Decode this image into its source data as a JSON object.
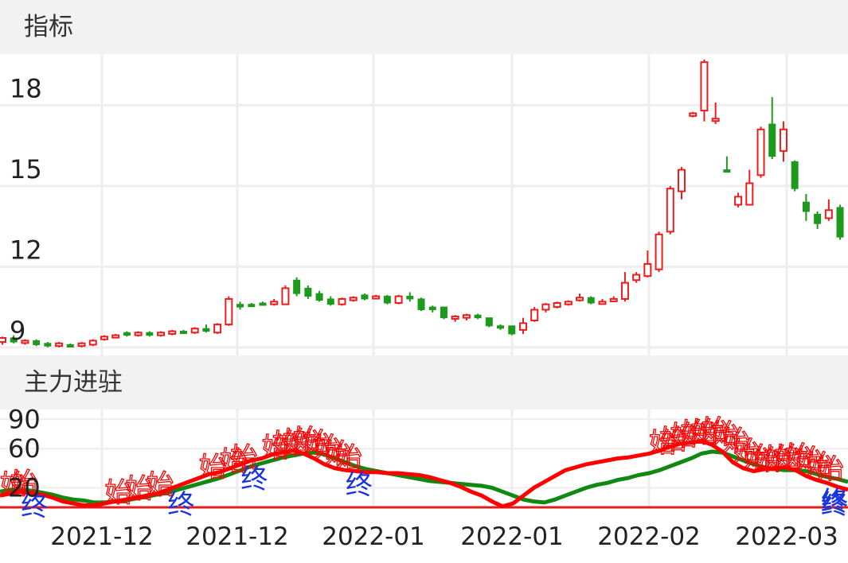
{
  "panels": {
    "top_title": "指标",
    "bottom_title": "主力进驻"
  },
  "colors": {
    "up": "#ee1c1c",
    "down": "#1d9a1d",
    "fast_line": "#ff0000",
    "slow_line": "#118811",
    "end_marker": "#1a33dd",
    "grid": "#eeeeee"
  },
  "chart_data": [
    {
      "type": "candlestick",
      "title": "指标",
      "yticks": [
        9,
        12,
        15,
        18
      ],
      "ylim": [
        8.7,
        19.9
      ],
      "xtick_labels": [
        "2021-12",
        "2021-12",
        "2022-01",
        "2022-01",
        "2022-02",
        "2022-03"
      ],
      "grid": true,
      "candles": [
        [
          9.2,
          9.35,
          9.1,
          9.4
        ],
        [
          9.35,
          9.2,
          9.15,
          9.45
        ],
        [
          9.2,
          9.25,
          9.1,
          9.3
        ],
        [
          9.25,
          9.1,
          9.05,
          9.3
        ],
        [
          9.15,
          9.05,
          9.0,
          9.2
        ],
        [
          9.05,
          9.15,
          9.0,
          9.2
        ],
        [
          9.1,
          9.05,
          9.0,
          9.15
        ],
        [
          9.05,
          9.15,
          9.0,
          9.2
        ],
        [
          9.1,
          9.25,
          9.05,
          9.3
        ],
        [
          9.3,
          9.4,
          9.25,
          9.45
        ],
        [
          9.45,
          9.45,
          9.35,
          9.5
        ],
        [
          9.55,
          9.45,
          9.4,
          9.6
        ],
        [
          9.45,
          9.55,
          9.4,
          9.6
        ],
        [
          9.55,
          9.45,
          9.4,
          9.6
        ],
        [
          9.45,
          9.55,
          9.4,
          9.6
        ],
        [
          9.5,
          9.6,
          9.45,
          9.65
        ],
        [
          9.6,
          9.55,
          9.5,
          9.65
        ],
        [
          9.55,
          9.7,
          9.5,
          9.75
        ],
        [
          9.7,
          9.6,
          9.55,
          9.85
        ],
        [
          9.55,
          9.85,
          9.5,
          9.9
        ],
        [
          9.85,
          10.8,
          9.8,
          10.9
        ],
        [
          10.6,
          10.5,
          10.4,
          10.7
        ],
        [
          10.6,
          10.55,
          10.5,
          10.65
        ],
        [
          10.65,
          10.6,
          10.55,
          10.7
        ],
        [
          10.6,
          10.7,
          10.55,
          10.8
        ],
        [
          10.6,
          11.2,
          10.6,
          11.3
        ],
        [
          11.5,
          11.0,
          10.9,
          11.6
        ],
        [
          11.2,
          10.9,
          10.8,
          11.3
        ],
        [
          11.0,
          10.75,
          10.7,
          11.1
        ],
        [
          10.8,
          10.6,
          10.55,
          10.9
        ],
        [
          10.6,
          10.8,
          10.55,
          10.85
        ],
        [
          10.75,
          10.85,
          10.7,
          10.9
        ],
        [
          10.95,
          10.8,
          10.75,
          11.0
        ],
        [
          10.85,
          10.9,
          10.8,
          10.95
        ],
        [
          10.9,
          10.65,
          10.6,
          10.95
        ],
        [
          10.65,
          10.9,
          10.6,
          10.95
        ],
        [
          10.9,
          10.8,
          10.7,
          11.05
        ],
        [
          10.8,
          10.4,
          10.35,
          10.85
        ],
        [
          10.5,
          10.4,
          10.3,
          10.55
        ],
        [
          10.5,
          10.1,
          10.05,
          10.5
        ],
        [
          10.15,
          10.15,
          9.95,
          10.2
        ],
        [
          10.1,
          10.2,
          10.0,
          10.25
        ],
        [
          10.2,
          10.1,
          10.05,
          10.25
        ],
        [
          10.1,
          9.8,
          9.75,
          10.1
        ],
        [
          9.8,
          9.75,
          9.65,
          9.85
        ],
        [
          9.8,
          9.5,
          9.45,
          9.8
        ],
        [
          9.65,
          9.9,
          9.5,
          10.1
        ],
        [
          10.0,
          10.4,
          9.95,
          10.5
        ],
        [
          10.4,
          10.6,
          10.3,
          10.65
        ],
        [
          10.5,
          10.65,
          10.45,
          10.7
        ],
        [
          10.6,
          10.7,
          10.55,
          10.75
        ],
        [
          10.75,
          10.85,
          10.7,
          11.0
        ],
        [
          10.85,
          10.65,
          10.6,
          10.9
        ],
        [
          10.7,
          10.7,
          10.6,
          10.8
        ],
        [
          10.75,
          10.8,
          10.7,
          10.9
        ],
        [
          10.8,
          11.4,
          10.7,
          11.8
        ],
        [
          11.5,
          11.7,
          11.4,
          11.8
        ],
        [
          11.65,
          12.1,
          11.6,
          12.6
        ],
        [
          11.9,
          13.2,
          11.8,
          13.3
        ],
        [
          13.3,
          14.9,
          13.2,
          15.0
        ],
        [
          14.8,
          15.6,
          14.5,
          15.7
        ],
        [
          17.6,
          17.7,
          17.55,
          17.75
        ],
        [
          17.8,
          19.6,
          17.4,
          19.7
        ],
        [
          17.5,
          17.5,
          17.3,
          18.1
        ],
        [
          15.6,
          15.55,
          15.5,
          16.1
        ],
        [
          14.3,
          14.6,
          14.2,
          14.75
        ],
        [
          14.3,
          15.1,
          14.3,
          15.6
        ],
        [
          15.4,
          17.1,
          15.3,
          17.2
        ],
        [
          17.3,
          16.1,
          16.0,
          18.3
        ],
        [
          16.3,
          17.1,
          15.9,
          17.4
        ],
        [
          15.9,
          14.9,
          14.8,
          15.95
        ],
        [
          14.4,
          14.05,
          13.7,
          14.7
        ],
        [
          13.95,
          13.6,
          13.4,
          14.05
        ],
        [
          13.8,
          14.1,
          13.7,
          14.5
        ],
        [
          14.2,
          13.1,
          13.0,
          14.3
        ]
      ]
    },
    {
      "type": "line",
      "title": "主力进驻",
      "yticks": [
        20,
        60,
        90
      ],
      "ylim": [
        0,
        100
      ],
      "series": [
        {
          "values": [
            12,
            14,
            16,
            14,
            13,
            10,
            6,
            4,
            2,
            2,
            4,
            6,
            8,
            10,
            12,
            14,
            18,
            22,
            26,
            30,
            34,
            36,
            40,
            44,
            48,
            50,
            54,
            56,
            58,
            55,
            50,
            44,
            40,
            38,
            37,
            36,
            36,
            35,
            35,
            34,
            33,
            31,
            28,
            25,
            21,
            16,
            12,
            6,
            1,
            4,
            12,
            20,
            26,
            32,
            38,
            41,
            44,
            46,
            48,
            50,
            51,
            53,
            55,
            58,
            62,
            65,
            66,
            68,
            64,
            57,
            46,
            40,
            37,
            39,
            40,
            41,
            38,
            32,
            28,
            25,
            21,
            18
          ]
        },
        {
          "values": [
            16,
            18,
            18,
            17,
            15,
            13,
            10,
            8,
            7,
            5,
            5,
            6,
            7,
            9,
            11,
            13,
            15,
            18,
            21,
            24,
            27,
            30,
            34,
            38,
            42,
            45,
            48,
            51,
            53,
            55,
            56,
            54,
            50,
            46,
            42,
            39,
            37,
            35,
            33,
            31,
            29,
            27,
            26,
            25,
            24,
            23,
            22,
            20,
            16,
            12,
            8,
            6,
            5,
            8,
            12,
            16,
            20,
            23,
            25,
            28,
            30,
            33,
            35,
            38,
            42,
            46,
            50,
            55,
            57,
            56,
            52,
            48,
            44,
            41,
            39,
            38,
            38,
            37,
            34,
            31,
            29,
            26
          ]
        }
      ],
      "annotations": [
        {
          "text": "始",
          "x": 0
        },
        {
          "text": "始",
          "x": 1
        },
        {
          "text": "终",
          "x": 2
        },
        {
          "text": "始",
          "x": 10
        },
        {
          "text": "始",
          "x": 12
        },
        {
          "text": "始",
          "x": 14
        },
        {
          "text": "终",
          "x": 16
        },
        {
          "text": "始",
          "x": 19
        },
        {
          "text": "始",
          "x": 21
        },
        {
          "text": "始",
          "x": 22
        },
        {
          "text": "终",
          "x": 23
        },
        {
          "text": "始",
          "x": 25
        },
        {
          "text": "始",
          "x": 26
        },
        {
          "text": "始",
          "x": 27
        },
        {
          "text": "始",
          "x": 28
        },
        {
          "text": "始",
          "x": 29
        },
        {
          "text": "始",
          "x": 30
        },
        {
          "text": "始",
          "x": 31
        },
        {
          "text": "始",
          "x": 32
        },
        {
          "text": "终",
          "x": 33
        },
        {
          "text": "始",
          "x": 62
        },
        {
          "text": "始",
          "x": 63
        },
        {
          "text": "始",
          "x": 64
        },
        {
          "text": "始",
          "x": 65
        },
        {
          "text": "始",
          "x": 66
        },
        {
          "text": "始",
          "x": 67
        },
        {
          "text": "始",
          "x": 68
        },
        {
          "text": "始",
          "x": 69
        },
        {
          "text": "始",
          "x": 70
        },
        {
          "text": "始",
          "x": 71
        },
        {
          "text": "始",
          "x": 72
        },
        {
          "text": "始",
          "x": 73
        },
        {
          "text": "始",
          "x": 74
        },
        {
          "text": "始",
          "x": 75
        },
        {
          "text": "始",
          "x": 76
        },
        {
          "text": "始",
          "x": 77
        },
        {
          "text": "始",
          "x": 78
        },
        {
          "text": "终",
          "x": 80
        },
        {
          "text": "终",
          "x": 92
        }
      ]
    }
  ]
}
